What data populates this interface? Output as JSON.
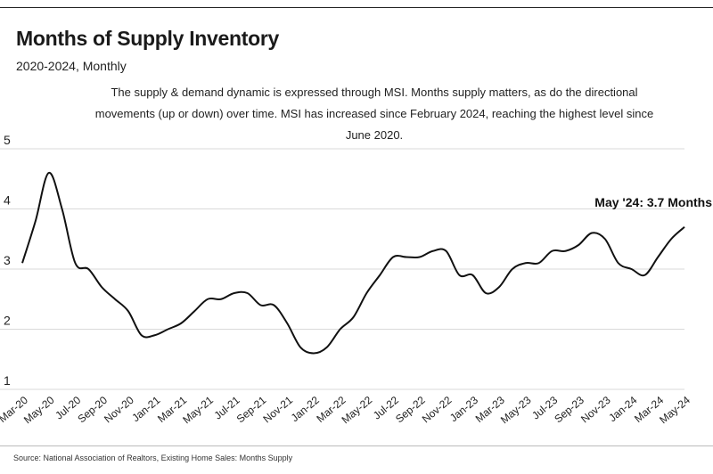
{
  "title": "Months of Supply Inventory",
  "subtitle": "2020-2024, Monthly",
  "description": "The supply & demand dynamic is expressed through MSI. Months supply matters, as do the directional movements (up or down) over time. MSI has increased since February 2024, reaching the highest level since June 2020.",
  "source": "Source:  National Association of Realtors, Existing Home Sales: Months Supply",
  "colors": {
    "line": "#111111",
    "grid": "#d9d9d9",
    "text": "#222222"
  },
  "chart_data": {
    "type": "line",
    "title": "Months of Supply Inventory",
    "subtitle": "2020-2024, Monthly",
    "xlabel": "",
    "ylabel": "",
    "ylim": [
      1,
      5
    ],
    "yticks": [
      1,
      2,
      3,
      4,
      5
    ],
    "grid": "horizontal",
    "x_tick_labels": [
      "Mar-20",
      "May-20",
      "Jul-20",
      "Sep-20",
      "Nov-20",
      "Jan-21",
      "Mar-21",
      "May-21",
      "Jul-21",
      "Sep-21",
      "Nov-21",
      "Jan-22",
      "Mar-22",
      "May-22",
      "Jul-22",
      "Sep-22",
      "Nov-22",
      "Jan-23",
      "Mar-23",
      "May-23",
      "Jul-23",
      "Sep-23",
      "Nov-23",
      "Jan-24",
      "Mar-24",
      "May-24"
    ],
    "x": [
      "Mar-20",
      "Apr-20",
      "May-20",
      "Jun-20",
      "Jul-20",
      "Aug-20",
      "Sep-20",
      "Oct-20",
      "Nov-20",
      "Dec-20",
      "Jan-21",
      "Feb-21",
      "Mar-21",
      "Apr-21",
      "May-21",
      "Jun-21",
      "Jul-21",
      "Aug-21",
      "Sep-21",
      "Oct-21",
      "Nov-21",
      "Dec-21",
      "Jan-22",
      "Feb-22",
      "Mar-22",
      "Apr-22",
      "May-22",
      "Jun-22",
      "Jul-22",
      "Aug-22",
      "Sep-22",
      "Oct-22",
      "Nov-22",
      "Dec-22",
      "Jan-23",
      "Feb-23",
      "Mar-23",
      "Apr-23",
      "May-23",
      "Jun-23",
      "Jul-23",
      "Aug-23",
      "Sep-23",
      "Oct-23",
      "Nov-23",
      "Dec-23",
      "Jan-24",
      "Feb-24",
      "Mar-24",
      "Apr-24",
      "May-24"
    ],
    "series": [
      {
        "values": [
          3.1,
          3.8,
          4.6,
          4.0,
          3.1,
          3.0,
          2.7,
          2.5,
          2.3,
          1.9,
          1.9,
          2.0,
          2.1,
          2.3,
          2.5,
          2.5,
          2.6,
          2.6,
          2.4,
          2.4,
          2.1,
          1.7,
          1.6,
          1.7,
          2.0,
          2.2,
          2.6,
          2.9,
          3.2,
          3.2,
          3.2,
          3.3,
          3.3,
          2.9,
          2.9,
          2.6,
          2.7,
          3.0,
          3.1,
          3.1,
          3.3,
          3.3,
          3.4,
          3.6,
          3.5,
          3.1,
          3.0,
          2.9,
          3.2,
          3.5,
          3.7
        ]
      }
    ],
    "annotation": {
      "x": "May-24",
      "text": "May '24: 3.7 Months"
    }
  }
}
